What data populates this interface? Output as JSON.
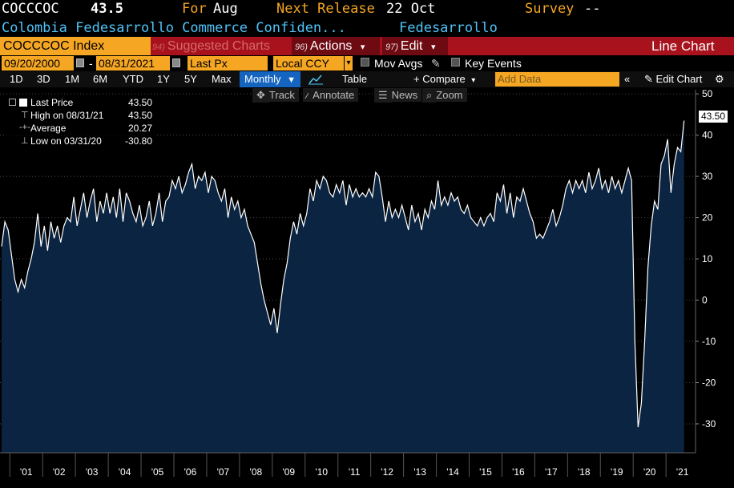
{
  "header": {
    "ticker": "COCCCOC",
    "value": "43.5",
    "for_label": "For",
    "for_value": "Aug",
    "next_release_label": "Next Release",
    "next_release_value": "22 Oct",
    "survey_label": "Survey",
    "survey_value": "--",
    "description": "Colombia Fedesarrollo Commerce Confiden...",
    "source": "Fedesarrollo"
  },
  "menubar": {
    "ticker_box": "COCCCOC Index",
    "suggested_num": "94)",
    "suggested": "Suggested Charts",
    "actions_num": "96)",
    "actions": "Actions",
    "edit_num": "97)",
    "edit": "Edit",
    "chart_type": "Line Chart",
    "dropdown_glyph": "▾"
  },
  "params": {
    "start_date": "09/20/2000",
    "date_sep": "-",
    "end_date": "08/31/2021",
    "field": "Last Px",
    "currency": "Local CCY",
    "mov_avgs": "Mov Avgs",
    "key_events": "Key Events"
  },
  "ranges": {
    "buttons": [
      "1D",
      "3D",
      "1M",
      "6M",
      "YTD",
      "1Y",
      "5Y",
      "Max"
    ],
    "period": "Monthly",
    "table": "Table",
    "compare": "+ Compare",
    "add_data_placeholder": "Add Data",
    "edit_chart": "Edit Chart"
  },
  "toolbar": {
    "track": "Track",
    "annotate": "Annotate",
    "news": "News",
    "zoom": "Zoom"
  },
  "legend": {
    "last_price_label": "Last Price",
    "last_price_value": "43.50",
    "high_label": "High on 08/31/21",
    "high_value": "43.50",
    "average_label": "Average",
    "average_value": "20.27",
    "low_label": "Low on 03/31/20",
    "low_value": "-30.80"
  },
  "last_value_label": "43.50",
  "colors": {
    "menubar": "#a8121d",
    "orange": "#f5a623",
    "cyan": "#4fc3f7",
    "area_fill": "#0b2442",
    "line": "#ffffff"
  },
  "chart_data": {
    "type": "area",
    "x_unit": "year",
    "ylim": [
      -37,
      51
    ],
    "yticks": [
      -30,
      -20,
      -10,
      0,
      10,
      20,
      30,
      40,
      50
    ],
    "xlim": [
      2000.7,
      2021.9
    ],
    "xticks": [
      {
        "x": 2001,
        "label": "'01"
      },
      {
        "x": 2002,
        "label": "'02"
      },
      {
        "x": 2003,
        "label": "'03"
      },
      {
        "x": 2004,
        "label": "'04"
      },
      {
        "x": 2005,
        "label": "'05"
      },
      {
        "x": 2006,
        "label": "'06"
      },
      {
        "x": 2007,
        "label": "'07"
      },
      {
        "x": 2008,
        "label": "'08"
      },
      {
        "x": 2009,
        "label": "'09"
      },
      {
        "x": 2010,
        "label": "'10"
      },
      {
        "x": 2011,
        "label": "'11"
      },
      {
        "x": 2012,
        "label": "'12"
      },
      {
        "x": 2013,
        "label": "'13"
      },
      {
        "x": 2014,
        "label": "'14"
      },
      {
        "x": 2015,
        "label": "'15"
      },
      {
        "x": 2016,
        "label": "'16"
      },
      {
        "x": 2017,
        "label": "'17"
      },
      {
        "x": 2018,
        "label": "'18"
      },
      {
        "x": 2019,
        "label": "'19"
      },
      {
        "x": 2020,
        "label": "'20"
      },
      {
        "x": 2021,
        "label": "'21"
      }
    ],
    "grid": "horizontal",
    "legend": "top-left",
    "series": [
      {
        "points": [
          [
            2000.75,
            13
          ],
          [
            2000.85,
            19
          ],
          [
            2000.95,
            17
          ],
          [
            2001.05,
            11
          ],
          [
            2001.15,
            5
          ],
          [
            2001.25,
            2
          ],
          [
            2001.35,
            5
          ],
          [
            2001.45,
            3
          ],
          [
            2001.55,
            7
          ],
          [
            2001.65,
            10
          ],
          [
            2001.75,
            14
          ],
          [
            2001.85,
            21
          ],
          [
            2001.95,
            13
          ],
          [
            2002.05,
            18
          ],
          [
            2002.15,
            12
          ],
          [
            2002.25,
            19
          ],
          [
            2002.35,
            15
          ],
          [
            2002.45,
            18
          ],
          [
            2002.55,
            14
          ],
          [
            2002.65,
            18
          ],
          [
            2002.75,
            20
          ],
          [
            2002.85,
            19
          ],
          [
            2002.95,
            25
          ],
          [
            2003.05,
            18
          ],
          [
            2003.15,
            22
          ],
          [
            2003.25,
            26
          ],
          [
            2003.35,
            20
          ],
          [
            2003.45,
            24
          ],
          [
            2003.55,
            27
          ],
          [
            2003.65,
            19
          ],
          [
            2003.75,
            24
          ],
          [
            2003.85,
            21
          ],
          [
            2003.95,
            26
          ],
          [
            2004.05,
            21
          ],
          [
            2004.15,
            25
          ],
          [
            2004.25,
            20
          ],
          [
            2004.35,
            27
          ],
          [
            2004.45,
            19
          ],
          [
            2004.55,
            26
          ],
          [
            2004.65,
            24
          ],
          [
            2004.75,
            21
          ],
          [
            2004.85,
            19
          ],
          [
            2004.95,
            23
          ],
          [
            2005.05,
            18
          ],
          [
            2005.15,
            20
          ],
          [
            2005.25,
            24
          ],
          [
            2005.35,
            18
          ],
          [
            2005.45,
            21
          ],
          [
            2005.55,
            26
          ],
          [
            2005.65,
            19
          ],
          [
            2005.75,
            24
          ],
          [
            2005.85,
            25
          ],
          [
            2005.95,
            29
          ],
          [
            2006.05,
            27
          ],
          [
            2006.15,
            30
          ],
          [
            2006.25,
            26
          ],
          [
            2006.35,
            28
          ],
          [
            2006.45,
            31
          ],
          [
            2006.55,
            33
          ],
          [
            2006.65,
            27
          ],
          [
            2006.75,
            30
          ],
          [
            2006.85,
            29
          ],
          [
            2006.95,
            31
          ],
          [
            2007.05,
            26
          ],
          [
            2007.15,
            30
          ],
          [
            2007.25,
            29
          ],
          [
            2007.35,
            26
          ],
          [
            2007.45,
            24
          ],
          [
            2007.55,
            27
          ],
          [
            2007.65,
            20
          ],
          [
            2007.75,
            25
          ],
          [
            2007.85,
            22
          ],
          [
            2007.95,
            24
          ],
          [
            2008.05,
            20
          ],
          [
            2008.15,
            22
          ],
          [
            2008.25,
            18
          ],
          [
            2008.35,
            16
          ],
          [
            2008.45,
            14
          ],
          [
            2008.55,
            9
          ],
          [
            2008.65,
            4
          ],
          [
            2008.75,
            0
          ],
          [
            2008.85,
            -3
          ],
          [
            2008.95,
            -6
          ],
          [
            2009.05,
            -2
          ],
          [
            2009.15,
            -8
          ],
          [
            2009.25,
            -1
          ],
          [
            2009.35,
            5
          ],
          [
            2009.45,
            9
          ],
          [
            2009.55,
            15
          ],
          [
            2009.65,
            19
          ],
          [
            2009.75,
            16
          ],
          [
            2009.85,
            21
          ],
          [
            2009.95,
            18
          ],
          [
            2010.05,
            21
          ],
          [
            2010.15,
            27
          ],
          [
            2010.25,
            24
          ],
          [
            2010.35,
            29
          ],
          [
            2010.45,
            27
          ],
          [
            2010.55,
            30
          ],
          [
            2010.65,
            29
          ],
          [
            2010.75,
            26
          ],
          [
            2010.85,
            25
          ],
          [
            2010.95,
            28
          ],
          [
            2011.05,
            26
          ],
          [
            2011.15,
            29
          ],
          [
            2011.25,
            23
          ],
          [
            2011.35,
            28
          ],
          [
            2011.45,
            25
          ],
          [
            2011.55,
            27
          ],
          [
            2011.65,
            25
          ],
          [
            2011.75,
            26
          ],
          [
            2011.85,
            25
          ],
          [
            2011.95,
            27
          ],
          [
            2012.05,
            25
          ],
          [
            2012.15,
            31
          ],
          [
            2012.25,
            30
          ],
          [
            2012.35,
            25
          ],
          [
            2012.45,
            19
          ],
          [
            2012.55,
            24
          ],
          [
            2012.65,
            20
          ],
          [
            2012.75,
            22
          ],
          [
            2012.85,
            20
          ],
          [
            2012.95,
            23
          ],
          [
            2013.05,
            20
          ],
          [
            2013.15,
            17
          ],
          [
            2013.25,
            23
          ],
          [
            2013.35,
            19
          ],
          [
            2013.45,
            21
          ],
          [
            2013.55,
            17
          ],
          [
            2013.65,
            22
          ],
          [
            2013.75,
            20
          ],
          [
            2013.85,
            24
          ],
          [
            2013.95,
            22
          ],
          [
            2014.05,
            29
          ],
          [
            2014.15,
            23
          ],
          [
            2014.25,
            25
          ],
          [
            2014.35,
            23
          ],
          [
            2014.45,
            26
          ],
          [
            2014.55,
            24
          ],
          [
            2014.65,
            25
          ],
          [
            2014.75,
            22
          ],
          [
            2014.85,
            21
          ],
          [
            2014.95,
            23
          ],
          [
            2015.05,
            20
          ],
          [
            2015.15,
            19
          ],
          [
            2015.25,
            18
          ],
          [
            2015.35,
            20
          ],
          [
            2015.45,
            18
          ],
          [
            2015.55,
            20
          ],
          [
            2015.65,
            21
          ],
          [
            2015.75,
            19
          ],
          [
            2015.85,
            26
          ],
          [
            2015.95,
            24
          ],
          [
            2016.05,
            28
          ],
          [
            2016.15,
            21
          ],
          [
            2016.25,
            26
          ],
          [
            2016.35,
            20
          ],
          [
            2016.45,
            25
          ],
          [
            2016.55,
            24
          ],
          [
            2016.65,
            27
          ],
          [
            2016.75,
            24
          ],
          [
            2016.85,
            21
          ],
          [
            2016.95,
            19
          ],
          [
            2017.05,
            15
          ],
          [
            2017.15,
            16
          ],
          [
            2017.25,
            15
          ],
          [
            2017.35,
            17
          ],
          [
            2017.45,
            19
          ],
          [
            2017.55,
            22
          ],
          [
            2017.65,
            18
          ],
          [
            2017.75,
            20
          ],
          [
            2017.85,
            23
          ],
          [
            2017.95,
            27
          ],
          [
            2018.05,
            29
          ],
          [
            2018.15,
            26
          ],
          [
            2018.25,
            29
          ],
          [
            2018.35,
            27
          ],
          [
            2018.45,
            29
          ],
          [
            2018.55,
            26
          ],
          [
            2018.65,
            31
          ],
          [
            2018.75,
            27
          ],
          [
            2018.85,
            29
          ],
          [
            2018.95,
            32
          ],
          [
            2019.05,
            27
          ],
          [
            2019.15,
            29
          ],
          [
            2019.25,
            26
          ],
          [
            2019.35,
            30
          ],
          [
            2019.45,
            27
          ],
          [
            2019.55,
            29
          ],
          [
            2019.65,
            26
          ],
          [
            2019.75,
            29
          ],
          [
            2019.85,
            32
          ],
          [
            2019.95,
            29
          ],
          [
            2020.05,
            -10
          ],
          [
            2020.15,
            -30.8
          ],
          [
            2020.25,
            -25
          ],
          [
            2020.35,
            -10
          ],
          [
            2020.45,
            8
          ],
          [
            2020.55,
            18
          ],
          [
            2020.65,
            24
          ],
          [
            2020.75,
            22
          ],
          [
            2020.85,
            33
          ],
          [
            2020.95,
            35
          ],
          [
            2021.05,
            39
          ],
          [
            2021.15,
            26
          ],
          [
            2021.25,
            33
          ],
          [
            2021.35,
            37
          ],
          [
            2021.45,
            36
          ],
          [
            2021.55,
            43.5
          ]
        ]
      }
    ]
  }
}
